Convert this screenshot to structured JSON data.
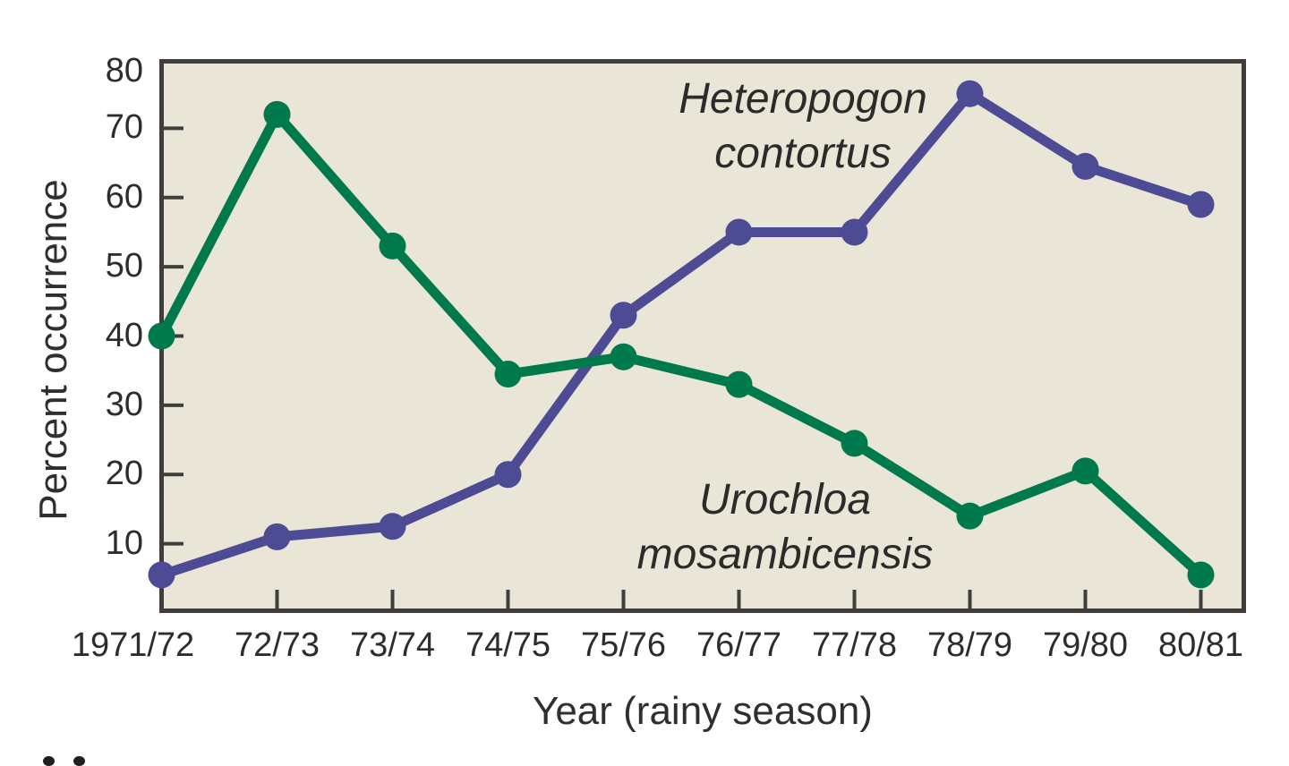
{
  "chart_data": {
    "type": "line",
    "title": "",
    "xlabel": "Year (rainy season)",
    "ylabel": "Percent occurrence",
    "categories": [
      "1971/72",
      "72/73",
      "73/74",
      "74/75",
      "75/76",
      "76/77",
      "77/78",
      "78/79",
      "79/80",
      "80/81"
    ],
    "yticks": [
      10,
      20,
      30,
      40,
      50,
      60,
      70,
      80
    ],
    "ylim": [
      0,
      80
    ],
    "grid": false,
    "legend_position": "inline-annotations",
    "plot_bg": "#eae6d7",
    "axis_color": "#3f3e3c",
    "series": [
      {
        "name": "Heteropogon contortus",
        "color": "#4c4b94",
        "values": [
          5.5,
          11,
          12.5,
          20,
          43,
          55,
          55,
          75,
          64.5,
          59
        ]
      },
      {
        "name": "Urochloa mosambicensis",
        "color": "#007a4d",
        "values": [
          40,
          72,
          53,
          34.5,
          37,
          33,
          24.5,
          14,
          20.5,
          5.5
        ]
      }
    ]
  }
}
